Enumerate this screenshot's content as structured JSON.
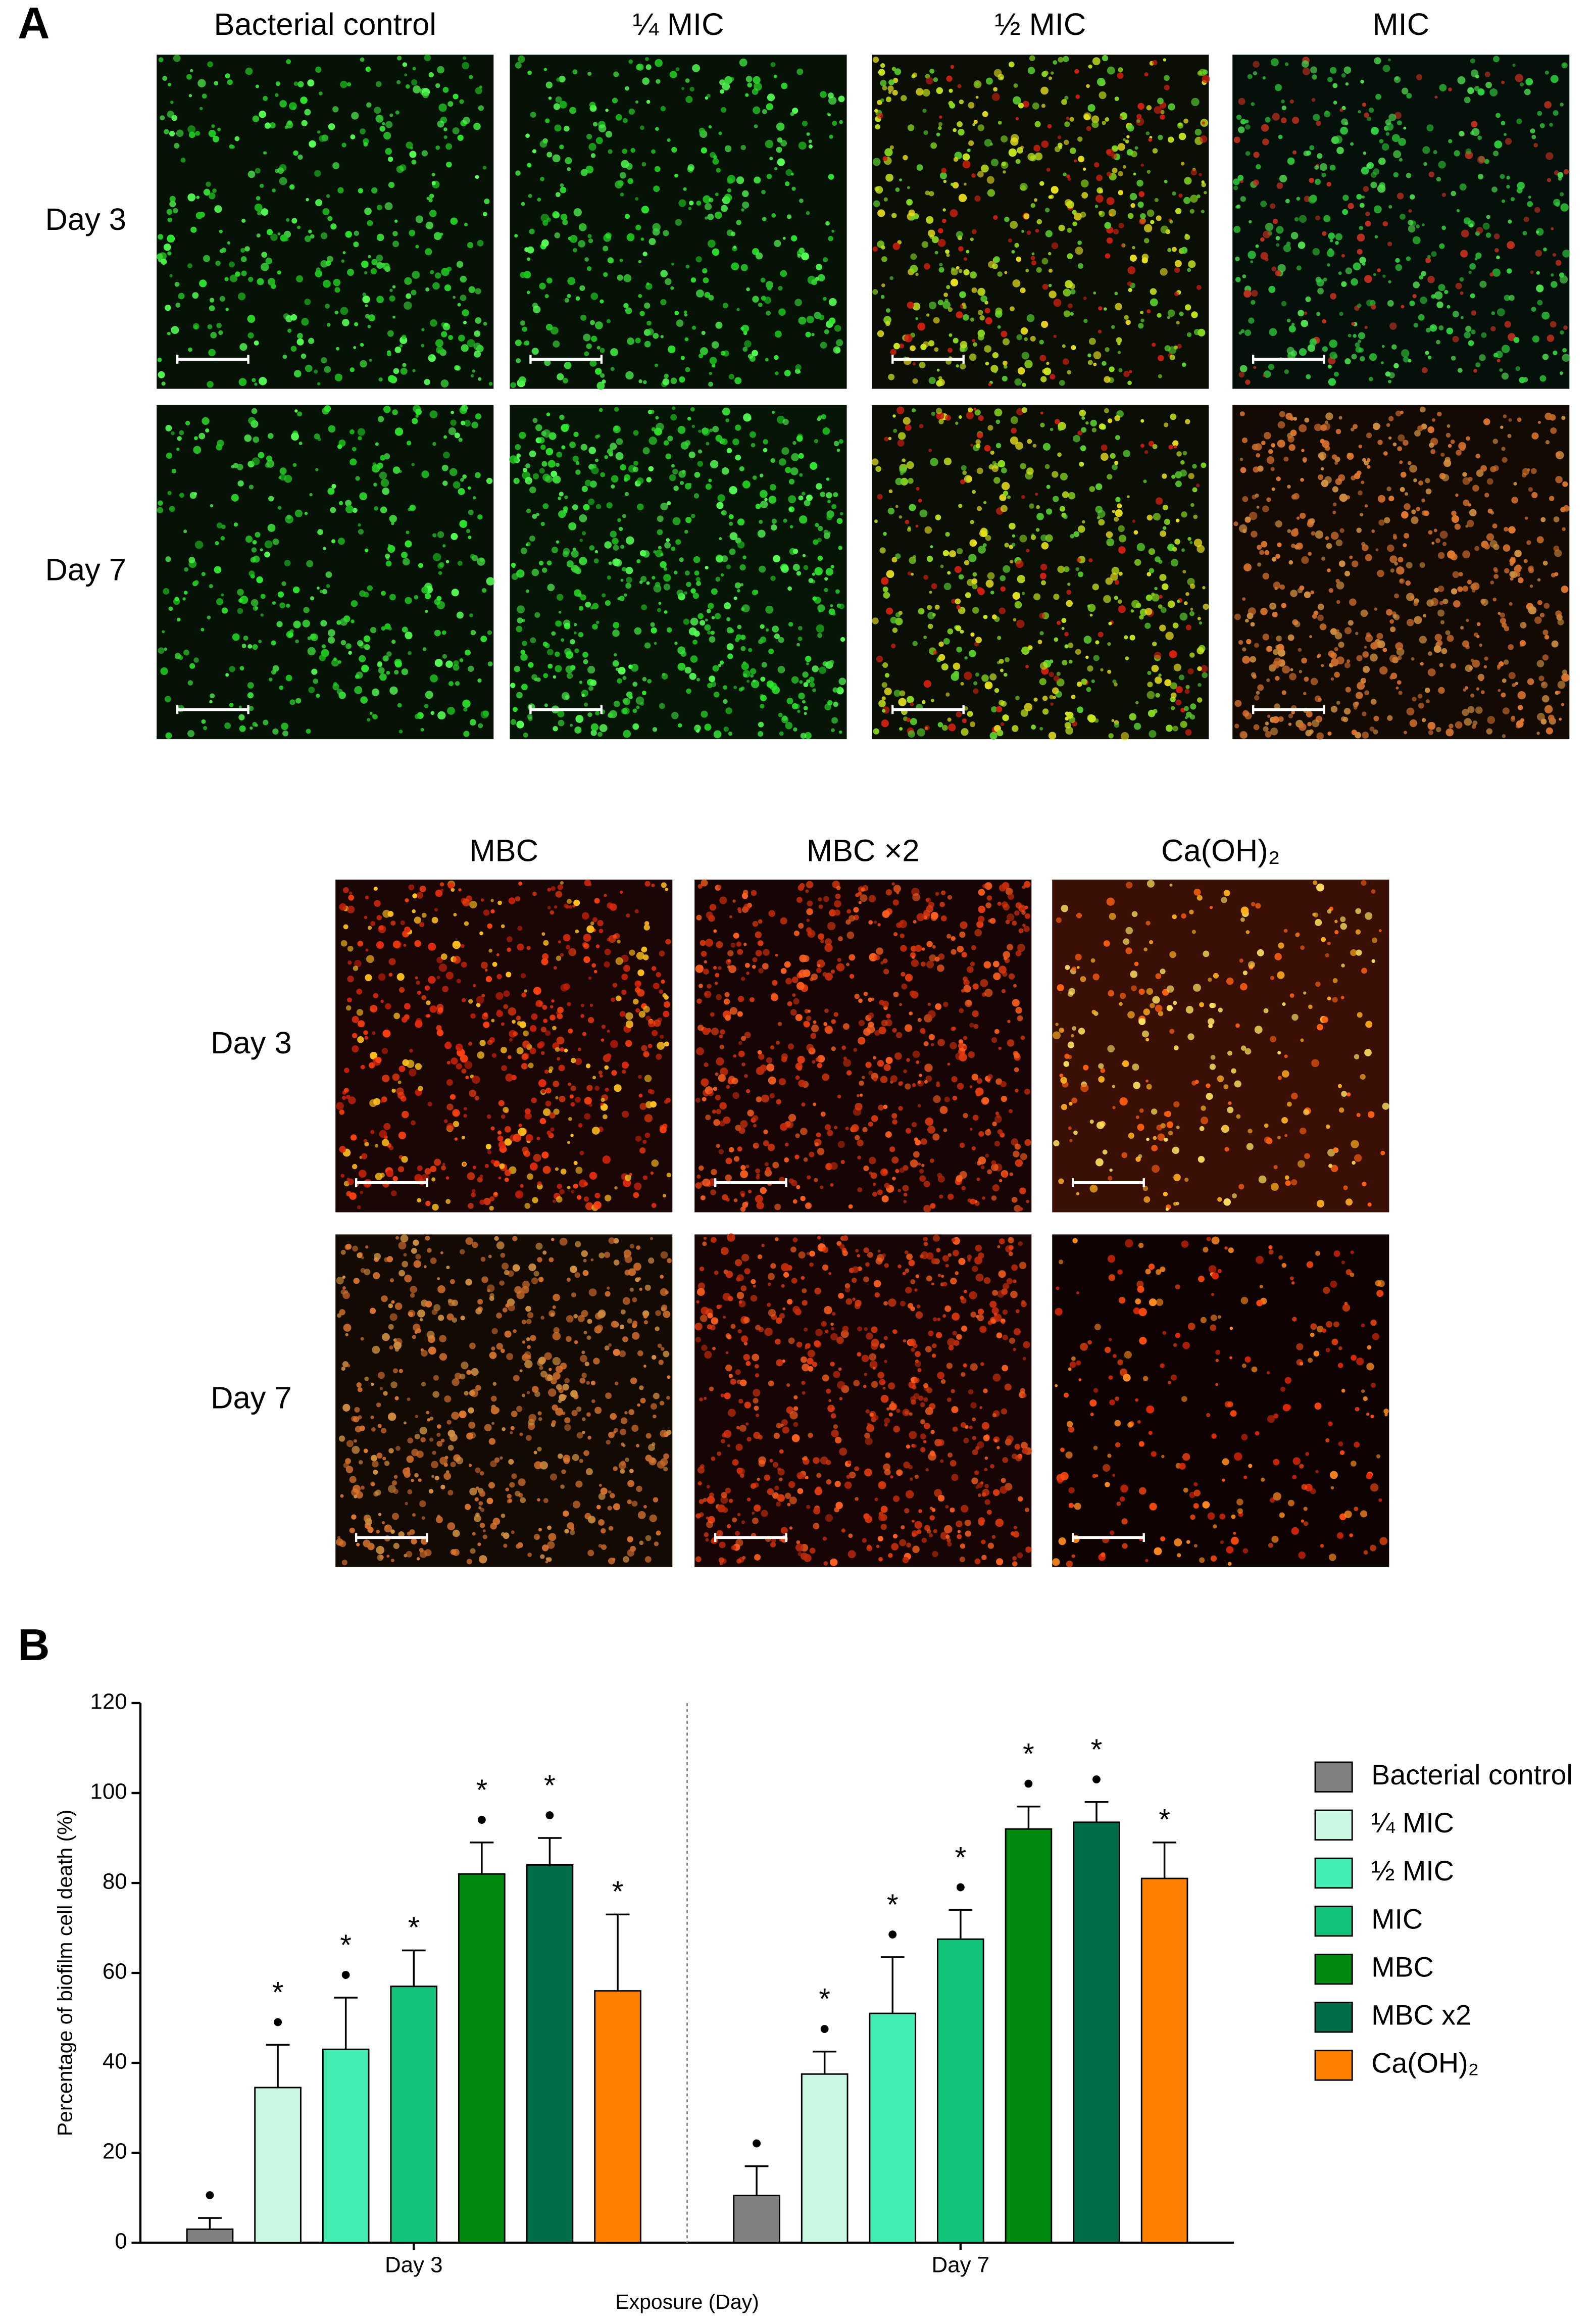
{
  "panel_a": {
    "label": "A",
    "top": {
      "columns": [
        "Bacterial control",
        "¼ MIC",
        "½ MIC",
        "MIC"
      ],
      "rows": [
        "Day 3",
        "Day 7"
      ]
    },
    "bottom": {
      "columns": [
        "MBC",
        "MBC ×2",
        "Ca(OH)₂"
      ],
      "rows": [
        "Day 3",
        "Day 7"
      ]
    }
  },
  "chart_data": {
    "type": "bar",
    "panel_label": "B",
    "ylabel": "Percentage of biofilm cell death (%)",
    "xlabel": "Exposure (Day)",
    "categories": [
      "Day 3",
      "Day 7"
    ],
    "ylim": [
      0,
      120
    ],
    "yticks": [
      0,
      20,
      40,
      60,
      80,
      100,
      120
    ],
    "legend": "right",
    "series": [
      {
        "name": "Bacterial control",
        "color": "#808080",
        "values": [
          3,
          10.5
        ],
        "errors": [
          2.5,
          6.5
        ],
        "annotations": [
          [
            "•"
          ],
          [
            "•"
          ]
        ]
      },
      {
        "name": "¼ MIC",
        "color": "#c8f7e2",
        "values": [
          34.5,
          37.5
        ],
        "errors": [
          9.5,
          5
        ],
        "annotations": [
          [
            "•",
            "*"
          ],
          [
            "•",
            "*"
          ]
        ]
      },
      {
        "name": "½ MIC",
        "color": "#44eeb2",
        "values": [
          43,
          51
        ],
        "errors": [
          11.5,
          12.5
        ],
        "annotations": [
          [
            "•",
            "*"
          ],
          [
            "•",
            "*"
          ]
        ]
      },
      {
        "name": "MIC",
        "color": "#12c278",
        "values": [
          57,
          67.5
        ],
        "errors": [
          8,
          6.5
        ],
        "annotations": [
          [
            "*"
          ],
          [
            "•",
            "*"
          ]
        ]
      },
      {
        "name": "MBC",
        "color": "#008a10",
        "values": [
          82,
          92
        ],
        "errors": [
          7,
          5
        ],
        "annotations": [
          [
            "•",
            "*"
          ],
          [
            "•",
            "*"
          ]
        ]
      },
      {
        "name": "MBC x2",
        "color": "#006e46",
        "values": [
          84,
          93.5
        ],
        "errors": [
          6,
          4.5
        ],
        "annotations": [
          [
            "•",
            "*"
          ],
          [
            "•",
            "*"
          ]
        ]
      },
      {
        "name": "Ca(OH)₂",
        "color": "#ff8000",
        "values": [
          56,
          81
        ],
        "errors": [
          17,
          8
        ],
        "annotations": [
          [
            "*"
          ],
          [
            "*"
          ]
        ]
      }
    ]
  }
}
